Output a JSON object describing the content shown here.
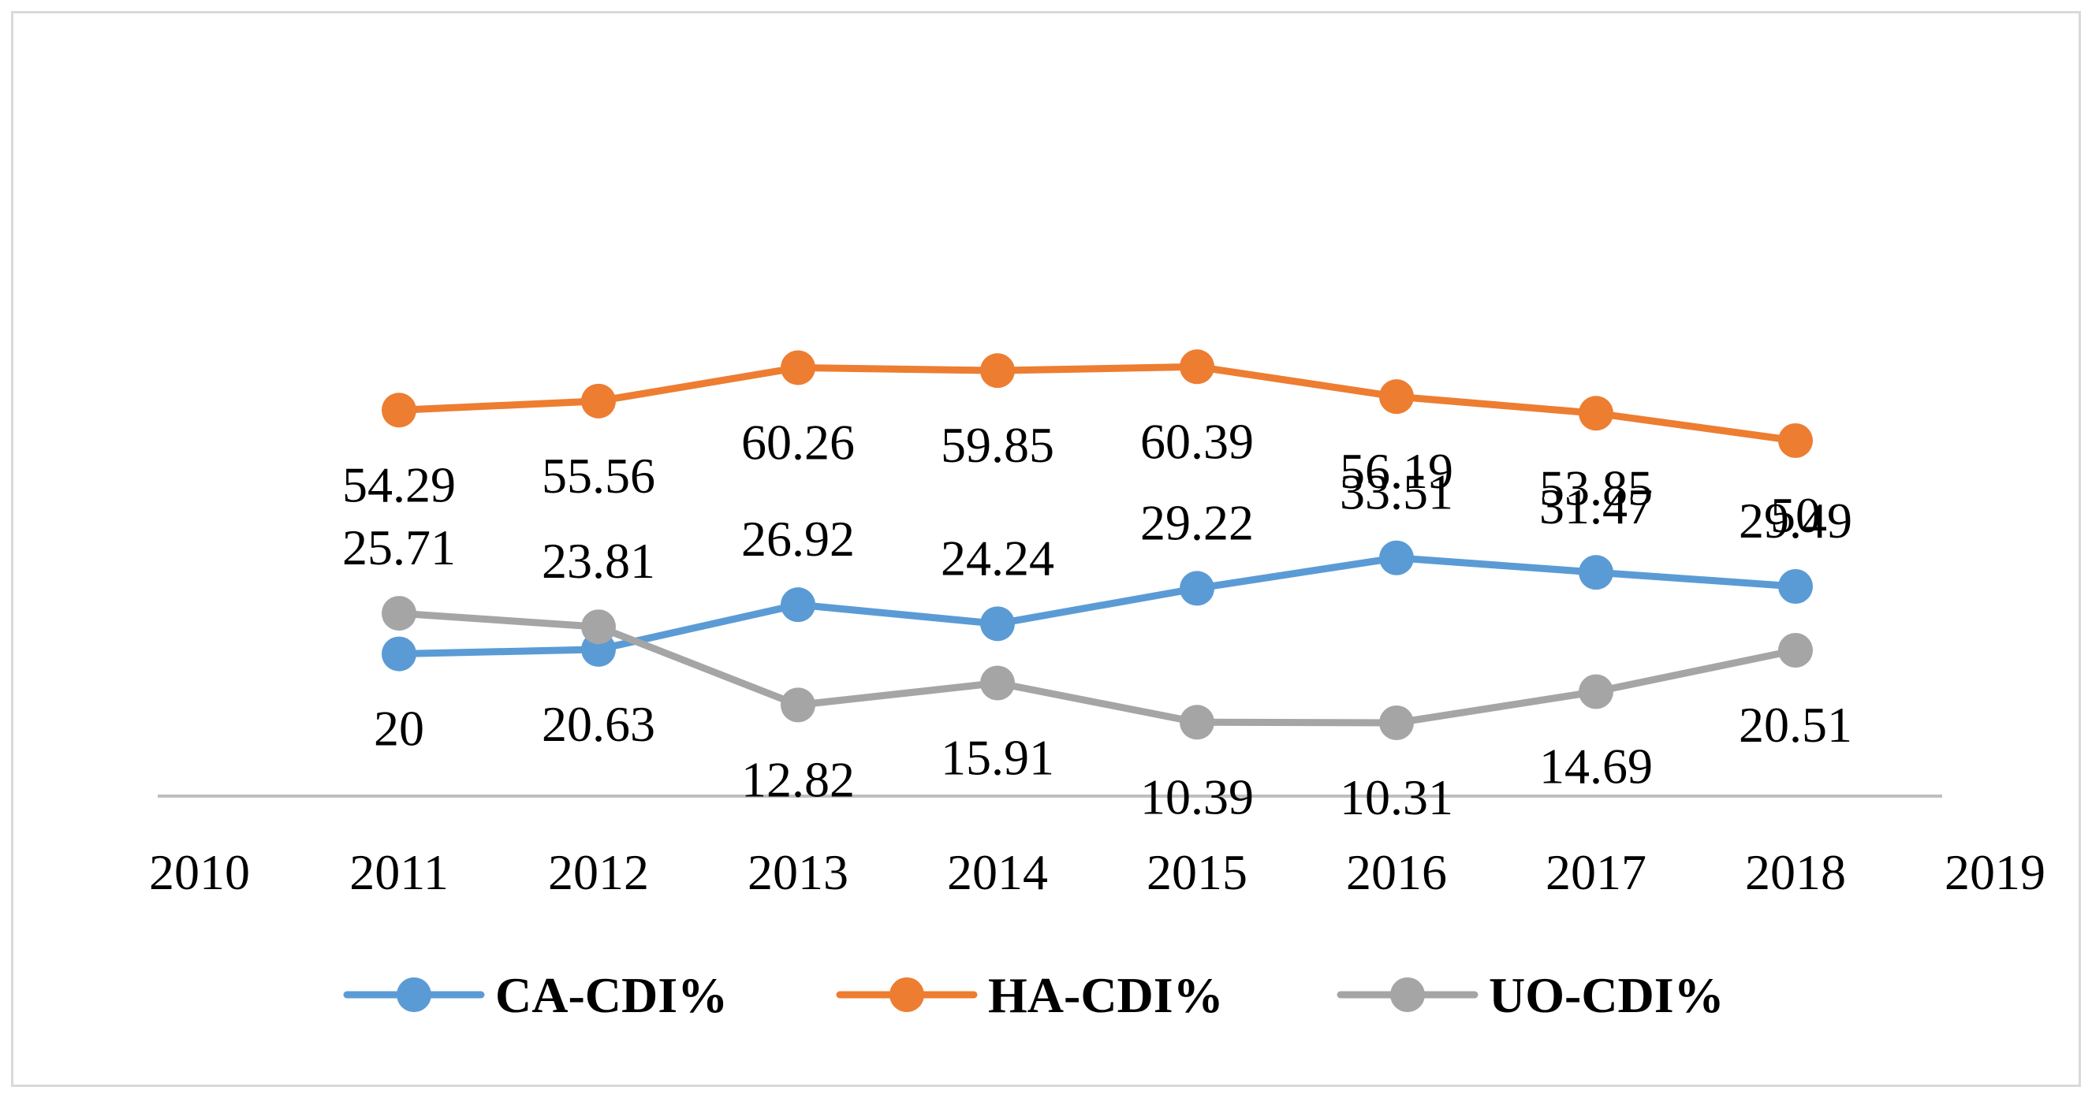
{
  "chart_data": {
    "type": "line",
    "title": "",
    "xlabel": "",
    "ylabel": "",
    "x_ticks": [
      "2010",
      "2011",
      "2012",
      "2013",
      "2014",
      "2015",
      "2016",
      "2017",
      "2018",
      "2019"
    ],
    "categories": [
      "2011",
      "2012",
      "2013",
      "2014",
      "2015",
      "2016",
      "2017",
      "2018"
    ],
    "series": [
      {
        "name": "CA-CDI%",
        "color": "#5b9bd5",
        "values": [
          20,
          20.63,
          26.92,
          24.24,
          29.22,
          33.51,
          31.47,
          29.49
        ],
        "labels": [
          "20",
          "20.63",
          "26.92",
          "24.24",
          "29.22",
          "33.51",
          "31.47",
          "29.49"
        ],
        "label_position": [
          "below",
          "below",
          "above",
          "above",
          "above",
          "above",
          "above",
          "above"
        ]
      },
      {
        "name": "HA-CDI%",
        "color": "#ed7d31",
        "values": [
          54.29,
          55.56,
          60.26,
          59.85,
          60.39,
          56.19,
          53.85,
          50
        ],
        "labels": [
          "54.29",
          "55.56",
          "60.26",
          "59.85",
          "60.39",
          "56.19",
          "53.85",
          "50"
        ],
        "label_position": [
          "below",
          "below",
          "below",
          "below",
          "below",
          "below",
          "below",
          "below"
        ]
      },
      {
        "name": "UO-CDI%",
        "color": "#a5a5a5",
        "values": [
          25.71,
          23.81,
          12.82,
          15.91,
          10.39,
          10.31,
          14.69,
          20.51
        ],
        "labels": [
          "25.71",
          "23.81",
          "12.82",
          "15.91",
          "10.39",
          "10.31",
          "14.69",
          "20.51"
        ],
        "label_position": [
          "above",
          "above",
          "below",
          "below",
          "below",
          "below",
          "below",
          "below"
        ]
      }
    ],
    "ylim": [
      0,
      70
    ],
    "grid": false,
    "legend": "bottom"
  }
}
